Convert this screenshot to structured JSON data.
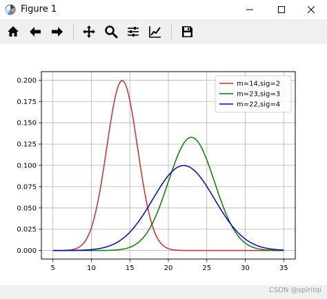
{
  "window": {
    "title": "Figure 1"
  },
  "toolbar": {
    "buttons": [
      {
        "name": "home-icon"
      },
      {
        "name": "back-arrow-icon"
      },
      {
        "name": "forward-arrow-icon"
      },
      {
        "name": "pan-icon"
      },
      {
        "name": "zoom-icon"
      },
      {
        "name": "configure-subplots-icon"
      },
      {
        "name": "edit-axis-icon"
      },
      {
        "name": "save-icon"
      }
    ]
  },
  "watermark": "CSDN @spiritqi",
  "chart_data": {
    "type": "line",
    "title": "",
    "xlabel": "",
    "ylabel": "",
    "xlim": [
      3.5,
      36.5
    ],
    "ylim": [
      -0.01,
      0.21
    ],
    "xticks": [
      5,
      10,
      15,
      20,
      25,
      30,
      35
    ],
    "xtick_labels": [
      "5",
      "10",
      "15",
      "20",
      "25",
      "30",
      "35"
    ],
    "yticks": [
      0.0,
      0.025,
      0.05,
      0.075,
      0.1,
      0.125,
      0.15,
      0.175,
      0.2
    ],
    "ytick_labels": [
      "0.000",
      "0.025",
      "0.050",
      "0.075",
      "0.100",
      "0.125",
      "0.150",
      "0.175",
      "0.200"
    ],
    "grid": true,
    "legend_position": "upper-right",
    "x_range": [
      5,
      35
    ],
    "series": [
      {
        "name": "m=14,sig=2",
        "color": "#d62728",
        "mean": 14,
        "sigma": 2,
        "peak": 0.199
      },
      {
        "name": "m=23,sig=3",
        "color": "#008000",
        "mean": 23,
        "sigma": 3,
        "peak": 0.133
      },
      {
        "name": "m=22,sig=4",
        "color": "#0000cc",
        "mean": 22,
        "sigma": 4,
        "peak": 0.0997
      }
    ]
  }
}
